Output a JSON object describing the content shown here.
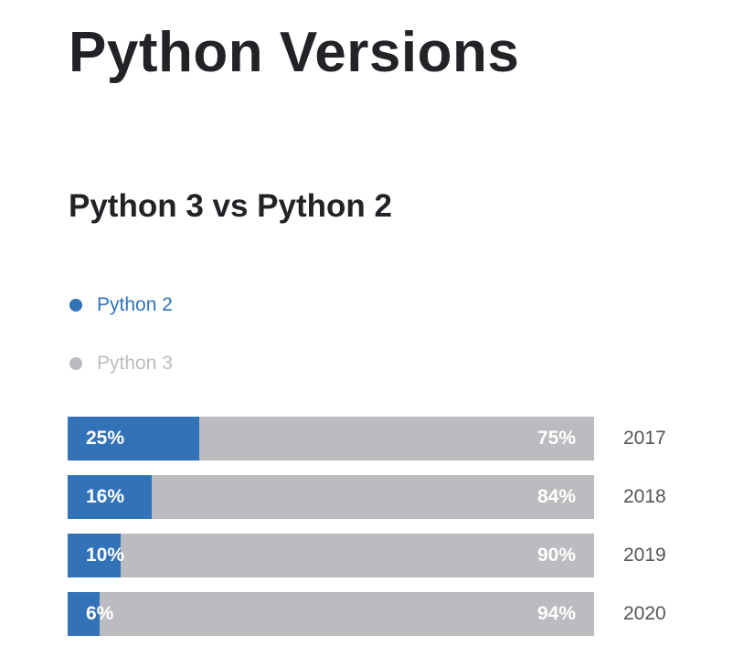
{
  "title": "Python Versions",
  "chart_data": {
    "type": "bar",
    "stacked": true,
    "orientation": "horizontal",
    "title": "Python 3 vs Python 2",
    "legend": [
      {
        "name": "Python 2",
        "color": "#3273b8"
      },
      {
        "name": "Python 3",
        "color": "#bbbcbf"
      }
    ],
    "categories": [
      "2017",
      "2018",
      "2019",
      "2020"
    ],
    "series": [
      {
        "name": "Python 2",
        "values": [
          25,
          16,
          10,
          6
        ],
        "labels": [
          "25%",
          "16%",
          "10%",
          "6%"
        ]
      },
      {
        "name": "Python 3",
        "values": [
          75,
          84,
          90,
          94
        ],
        "labels": [
          "75%",
          "84%",
          "90%",
          "94%"
        ]
      }
    ]
  }
}
